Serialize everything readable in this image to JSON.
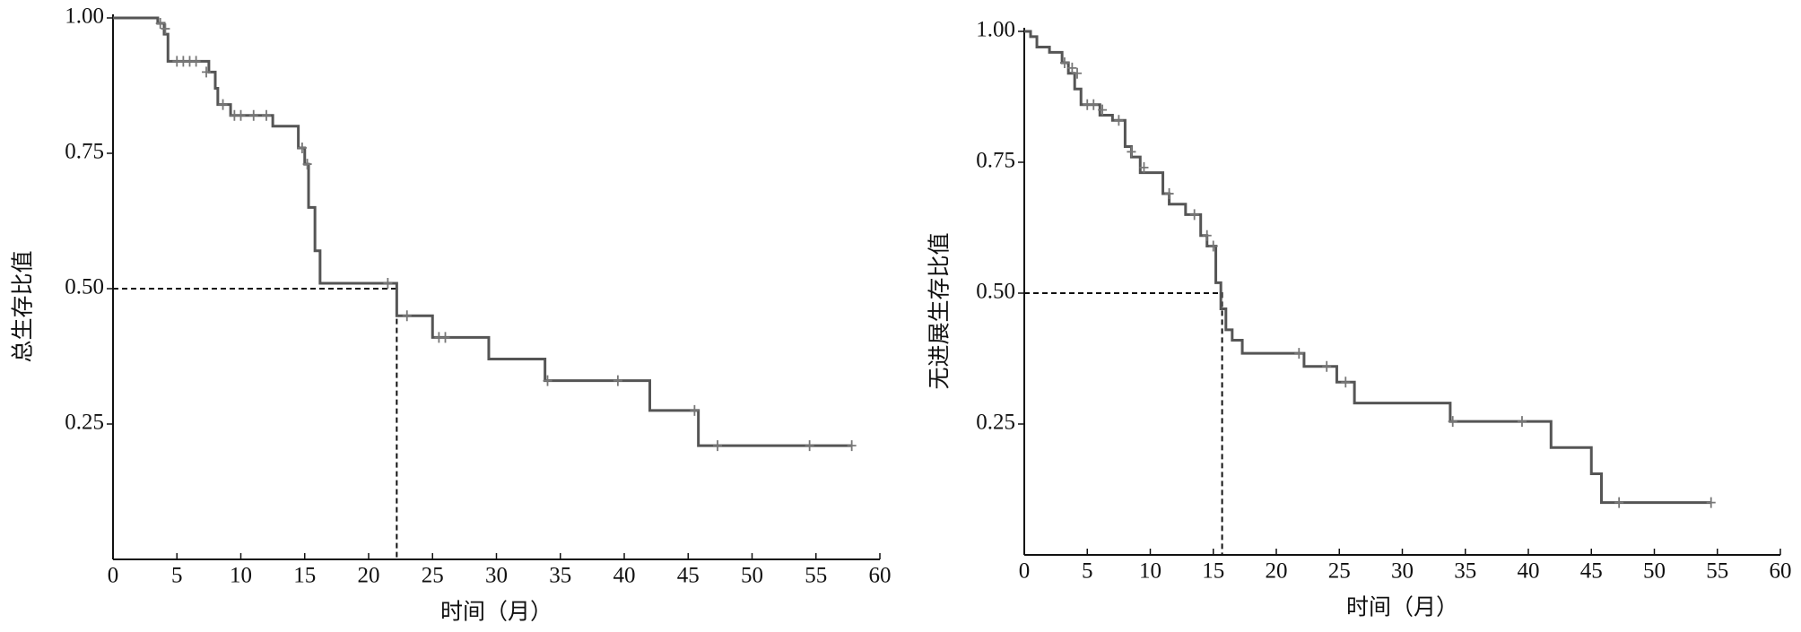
{
  "chart_data": [
    {
      "type": "step",
      "color": "#555555",
      "x_label": "时间（月）",
      "y_label": "总生存比值",
      "xlim": [
        0,
        60
      ],
      "ylim": [
        0,
        1
      ],
      "xticks": [
        0,
        5,
        10,
        15,
        20,
        25,
        30,
        35,
        40,
        45,
        50,
        55,
        60
      ],
      "yticks": [
        0.25,
        {
          "value": 0.5,
          "label": "0.50"
        },
        0.75,
        {
          "value": 1,
          "label": "1.00"
        }
      ],
      "x": [
        0,
        3.5,
        4,
        4.3,
        7.5,
        8,
        8.2,
        9.2,
        12.5,
        14.5,
        15,
        15.3,
        15.8,
        16.2,
        22.2,
        25,
        29.4,
        33.8,
        42,
        45.8,
        57.8
      ],
      "values": [
        1,
        0.99,
        0.97,
        0.92,
        0.9,
        0.87,
        0.84,
        0.82,
        0.8,
        0.76,
        0.73,
        0.65,
        0.57,
        0.51,
        0.45,
        0.41,
        0.37,
        0.33,
        0.275,
        0.21,
        0.21
      ],
      "censored_x": [
        3.7,
        4.1,
        5,
        5.5,
        6,
        6.5,
        7.3,
        8.6,
        9.5,
        10,
        11,
        12,
        14.8,
        15.2,
        21.5,
        23,
        25.5,
        26,
        34,
        39.5,
        45.5,
        47.3,
        54.5,
        57.8
      ],
      "censored_y": [
        0.99,
        0.98,
        0.92,
        0.92,
        0.92,
        0.92,
        0.9,
        0.84,
        0.82,
        0.82,
        0.82,
        0.82,
        0.76,
        0.73,
        0.51,
        0.45,
        0.41,
        0.41,
        0.33,
        0.33,
        0.275,
        0.21,
        0.21,
        0.21
      ],
      "median_x": 22.2,
      "median_y": 0.5
    },
    {
      "type": "step",
      "color": "#555555",
      "x_label": "时间（月）",
      "y_label": "无进展生存比值",
      "xlim": [
        0,
        60
      ],
      "ylim": [
        0,
        1
      ],
      "xticks": [
        0,
        5,
        10,
        15,
        20,
        25,
        30,
        35,
        40,
        45,
        50,
        55,
        60
      ],
      "yticks": [
        0.25,
        {
          "value": 0.5,
          "label": "0.50"
        },
        0.75,
        {
          "value": 1,
          "label": "1.00"
        }
      ],
      "x": [
        0,
        0.5,
        1,
        2,
        3,
        3.5,
        4,
        4.5,
        6,
        7,
        8,
        8.5,
        9.2,
        11,
        11.5,
        12.8,
        14,
        14.5,
        15.2,
        15.6,
        16,
        16.5,
        17.3,
        22.2,
        24.8,
        26.2,
        33.8,
        41.8,
        45,
        45.8,
        54.5
      ],
      "values": [
        1,
        0.99,
        0.97,
        0.96,
        0.94,
        0.92,
        0.89,
        0.86,
        0.84,
        0.83,
        0.78,
        0.76,
        0.73,
        0.69,
        0.67,
        0.65,
        0.61,
        0.59,
        0.52,
        0.47,
        0.43,
        0.41,
        0.385,
        0.36,
        0.33,
        0.29,
        0.255,
        0.205,
        0.155,
        0.1,
        0.1
      ],
      "censored_x": [
        3.2,
        3.8,
        4.2,
        5,
        5.5,
        6.2,
        7.5,
        8.5,
        9.5,
        11.5,
        13.5,
        14.5,
        15,
        21.8,
        24,
        25.5,
        34,
        39.5,
        47.2,
        54.5
      ],
      "censored_y": [
        0.94,
        0.93,
        0.92,
        0.86,
        0.86,
        0.85,
        0.83,
        0.77,
        0.74,
        0.69,
        0.65,
        0.61,
        0.59,
        0.385,
        0.36,
        0.33,
        0.255,
        0.255,
        0.1,
        0.1
      ],
      "median_x": 15.7,
      "median_y": 0.5
    }
  ]
}
